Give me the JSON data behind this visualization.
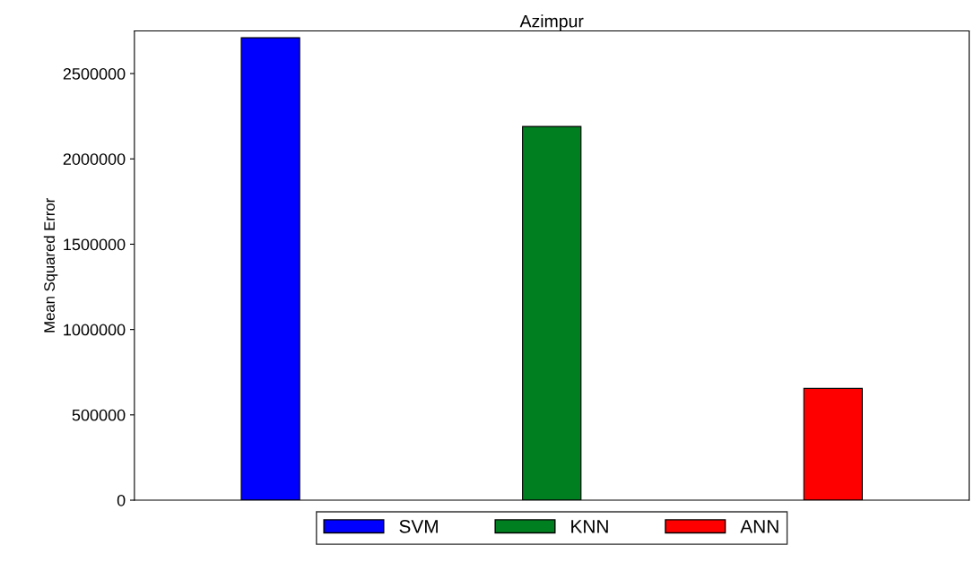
{
  "chart_data": {
    "type": "bar",
    "title": "Azimpur",
    "ylabel": "Mean Squared Error",
    "categories": [
      null
    ],
    "series": [
      {
        "name": "SVM",
        "color": "#0000ff",
        "values": [
          2710000
        ]
      },
      {
        "name": "KNN",
        "color": "#007f20",
        "values": [
          2190000
        ]
      },
      {
        "name": "ANN",
        "color": "#ff0000",
        "values": [
          655000
        ]
      }
    ],
    "ylim": [
      0,
      2750000
    ],
    "yticks": [
      0,
      500000,
      1000000,
      1500000,
      2000000,
      2500000
    ],
    "tick_labels": "y",
    "legend": "bottom",
    "grid": false
  }
}
